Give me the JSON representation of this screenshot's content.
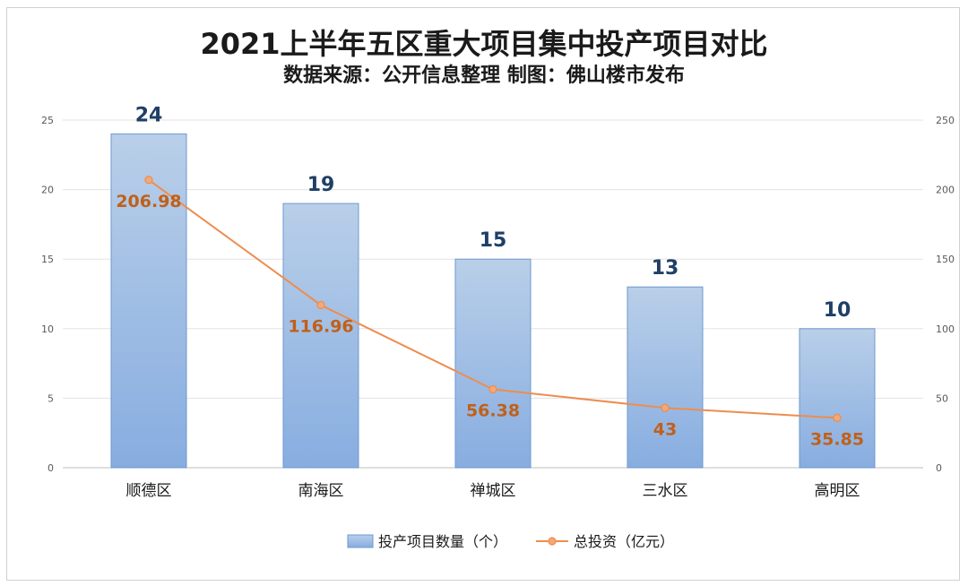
{
  "chart_data": {
    "type": "bar",
    "title": "2021上半年五区重大项目集中投产项目对比",
    "subtitle": "数据来源：公开信息整理  制图：佛山楼市发布",
    "categories": [
      "顺德区",
      "南海区",
      "禅城区",
      "三水区",
      "高明区"
    ],
    "series": [
      {
        "name": "投产项目数量（个）",
        "type": "bar",
        "axis": "left",
        "values": [
          24,
          19,
          15,
          13,
          10
        ],
        "labels": [
          "24",
          "19",
          "15",
          "13",
          "10"
        ]
      },
      {
        "name": "总投资（亿元）",
        "type": "line",
        "axis": "right",
        "values": [
          206.98,
          116.96,
          56.38,
          43,
          35.85
        ],
        "labels": [
          "206.98",
          "116.96",
          "56.38",
          "43",
          "35.85"
        ]
      }
    ],
    "y_left": {
      "range": [
        0,
        25
      ],
      "ticks": [
        "0",
        "5",
        "10",
        "15",
        "20",
        "25"
      ]
    },
    "y_right": {
      "range": [
        0,
        250
      ],
      "ticks": [
        "0",
        "50",
        "100",
        "150",
        "200",
        "250"
      ]
    },
    "grid": true,
    "legend_position": "bottom",
    "colors": {
      "bar_top": "#b9cfe9",
      "bar_bottom": "#87ade0",
      "bar_stroke": "#6e98cf",
      "line": "#ed8d4e",
      "marker_fill": "#f4a878"
    }
  }
}
